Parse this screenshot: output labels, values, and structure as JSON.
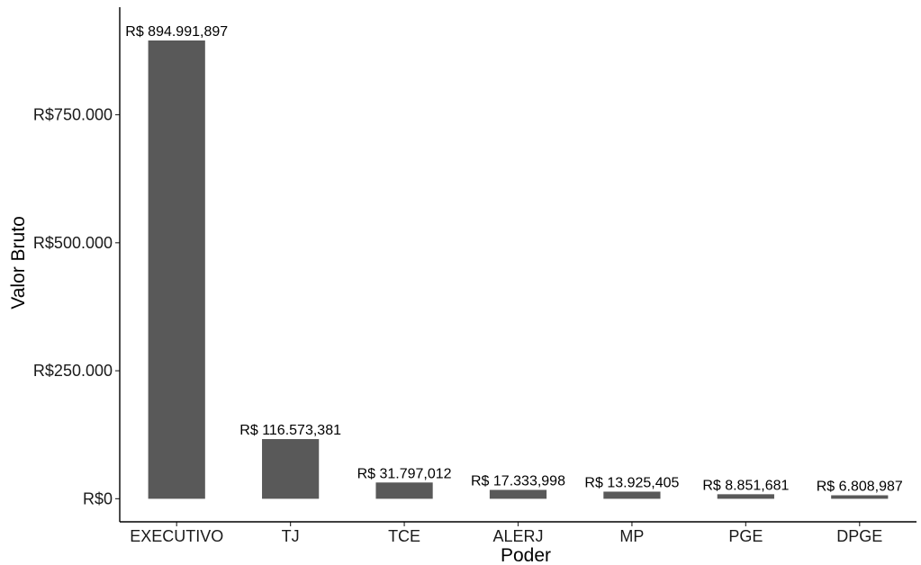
{
  "chart_data": {
    "type": "bar",
    "title": "",
    "xlabel": "Poder",
    "ylabel": "Valor Bruto",
    "categories": [
      "EXECUTIVO",
      "TJ",
      "TCE",
      "ALERJ",
      "MP",
      "PGE",
      "DPGE"
    ],
    "values": [
      894991897,
      116573381,
      31797012,
      17333998,
      13925405,
      8851681,
      6808987
    ],
    "data_labels": [
      "R$ 894.991,897",
      "R$ 116.573,381",
      "R$ 31.797,012",
      "R$ 17.333,998",
      "R$ 13.925,405",
      "R$ 8.851,681",
      "R$ 6.808,987"
    ],
    "yticks": [
      0,
      250000000,
      500000000,
      750000000
    ],
    "ytick_labels": [
      "R$0",
      "R$250.000",
      "R$500.000",
      "R$750.000"
    ],
    "ylim": [
      -45000000,
      960000000
    ],
    "grid": false,
    "legend": "none",
    "bar_color": "#595959"
  }
}
